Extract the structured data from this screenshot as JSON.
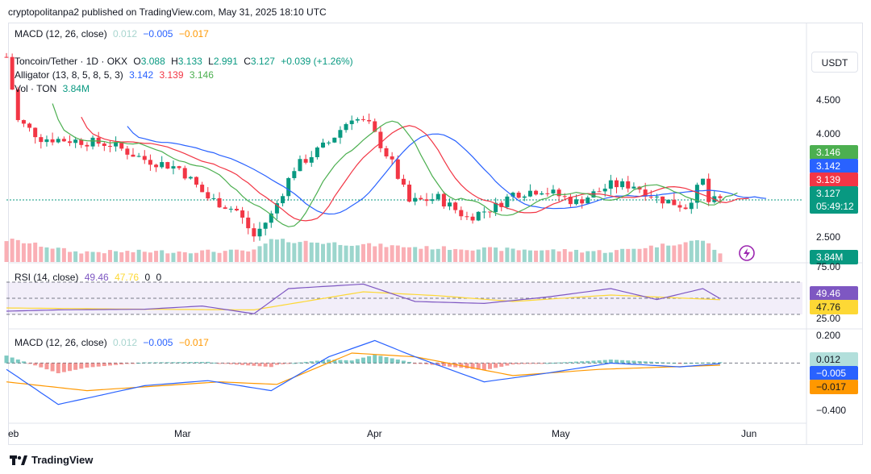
{
  "header": {
    "published": "cryptopolitanpa2 published on TradingView.com, May 31, 2025 18:10 UTC"
  },
  "top_macd_legend": {
    "label": "MACD (12, 26, close)",
    "v1": "0.012",
    "v2": "−0.005",
    "v3": "−0.017"
  },
  "price_legend": {
    "symbol": "Toncoin/Tether · 1D · OKX",
    "o_label": "O",
    "o": "3.088",
    "h_label": "H",
    "h": "3.133",
    "l_label": "L",
    "l": "2.991",
    "c_label": "C",
    "c": "3.127",
    "change": "+0.039 (+1.26%)",
    "alligator_label": "Alligator (13, 8, 5, 8, 5, 3)",
    "jaw": "3.142",
    "teeth": "3.139",
    "lips": "3.146",
    "vol_label": "Vol · TON",
    "vol": "3.84M"
  },
  "currency_button": "USDT",
  "price_axis": {
    "ticks": [
      "4.500",
      "4.000",
      "2.500"
    ],
    "min": 2.4,
    "max": 4.9
  },
  "price_badges": {
    "lips": "3.146",
    "jaw": "3.142",
    "teeth": "3.139",
    "close": "3.127",
    "countdown": "05:49:12",
    "volume": "3.84M"
  },
  "rsi": {
    "label": "RSI (14, close)",
    "value": "49.46",
    "ma": "47.76",
    "z1": "0",
    "z2": "0",
    "ticks": [
      "75.00",
      "25.00"
    ]
  },
  "macd": {
    "label": "MACD (12, 26, close)",
    "hist": "0.012",
    "macd": "−0.005",
    "signal": "−0.017",
    "ticks": [
      "0.200",
      "−0.400"
    ]
  },
  "x_axis": {
    "labels": [
      "eb",
      "Mar",
      "Apr",
      "May",
      "Jun"
    ]
  },
  "brand": {
    "name": "TradingView"
  },
  "colors": {
    "up": "#089981",
    "down": "#f23645",
    "jaw": "#2962ff",
    "teeth": "#f23645",
    "lips": "#4caf50",
    "rsi": "#7e57c2",
    "rsi_ma": "#fdd835",
    "macd_line": "#2962ff",
    "signal_line": "#ff9800"
  },
  "chart_data": {
    "type": "candlestick",
    "anchors": [
      [
        "2025-01-27",
        4.8
      ],
      [
        "2025-01-29",
        4.05
      ],
      [
        "2025-02-02",
        3.85
      ],
      [
        "2025-02-08",
        3.82
      ],
      [
        "2025-02-14",
        3.78
      ],
      [
        "2025-02-20",
        3.6
      ],
      [
        "2025-02-26",
        3.5
      ],
      [
        "2025-03-03",
        3.15
      ],
      [
        "2025-03-08",
        3.0
      ],
      [
        "2025-03-11",
        2.7
      ],
      [
        "2025-03-14",
        2.95
      ],
      [
        "2025-03-18",
        3.5
      ],
      [
        "2025-03-24",
        3.8
      ],
      [
        "2025-03-28",
        4.1
      ],
      [
        "2025-03-31",
        4.0
      ],
      [
        "2025-04-04",
        3.55
      ],
      [
        "2025-04-07",
        3.1
      ],
      [
        "2025-04-12",
        3.15
      ],
      [
        "2025-04-17",
        2.92
      ],
      [
        "2025-04-22",
        3.05
      ],
      [
        "2025-04-25",
        3.2
      ],
      [
        "2025-04-30",
        3.25
      ],
      [
        "2025-05-06",
        3.1
      ],
      [
        "2025-05-12",
        3.3
      ],
      [
        "2025-05-16",
        3.3
      ],
      [
        "2025-05-20",
        3.15
      ],
      [
        "2025-05-25",
        3.05
      ],
      [
        "2025-05-28",
        3.35
      ],
      [
        "2025-05-29",
        3.1
      ],
      [
        "2025-05-31",
        3.127
      ]
    ],
    "volume": [
      [
        "2025-01-28",
        0.95
      ],
      [
        "2025-02-08",
        0.25
      ],
      [
        "2025-03-11",
        0.3
      ],
      [
        "2025-03-14",
        0.95
      ],
      [
        "2025-04-10",
        0.5
      ],
      [
        "2025-05-12",
        0.28
      ],
      [
        "2025-05-28",
        0.95
      ],
      [
        "2025-05-31",
        0.2
      ]
    ],
    "rsi": [
      [
        "2025-01-27",
        30
      ],
      [
        "2025-02-05",
        32
      ],
      [
        "2025-02-20",
        33
      ],
      [
        "2025-03-02",
        38
      ],
      [
        "2025-03-11",
        26
      ],
      [
        "2025-03-17",
        65
      ],
      [
        "2025-03-30",
        72
      ],
      [
        "2025-04-08",
        45
      ],
      [
        "2025-04-20",
        42
      ],
      [
        "2025-05-01",
        52
      ],
      [
        "2025-05-12",
        65
      ],
      [
        "2025-05-20",
        48
      ],
      [
        "2025-05-28",
        65
      ],
      [
        "2025-05-31",
        49.46
      ]
    ],
    "rsi_ma": [
      [
        "2025-01-27",
        35
      ],
      [
        "2025-02-20",
        33
      ],
      [
        "2025-03-11",
        32
      ],
      [
        "2025-03-30",
        60
      ],
      [
        "2025-04-12",
        54
      ],
      [
        "2025-04-25",
        45
      ],
      [
        "2025-05-12",
        55
      ],
      [
        "2025-05-31",
        47.76
      ]
    ],
    "macd_line": [
      [
        "2025-01-27",
        -0.05
      ],
      [
        "2025-02-05",
        -0.33
      ],
      [
        "2025-02-20",
        -0.18
      ],
      [
        "2025-03-03",
        -0.14
      ],
      [
        "2025-03-14",
        -0.22
      ],
      [
        "2025-03-24",
        0.05
      ],
      [
        "2025-04-01",
        0.18
      ],
      [
        "2025-04-08",
        0.05
      ],
      [
        "2025-04-20",
        -0.15
      ],
      [
        "2025-05-01",
        -0.08
      ],
      [
        "2025-05-12",
        0.0
      ],
      [
        "2025-05-24",
        -0.03
      ],
      [
        "2025-05-31",
        -0.005
      ]
    ],
    "signal_line": [
      [
        "2025-01-27",
        -0.15
      ],
      [
        "2025-02-10",
        -0.22
      ],
      [
        "2025-03-05",
        -0.15
      ],
      [
        "2025-03-15",
        -0.17
      ],
      [
        "2025-03-28",
        0.08
      ],
      [
        "2025-04-08",
        0.05
      ],
      [
        "2025-04-25",
        -0.1
      ],
      [
        "2025-05-10",
        -0.05
      ],
      [
        "2025-05-31",
        -0.017
      ]
    ],
    "x_range": [
      "2025-01-27",
      "2025-06-15"
    ],
    "ylim_price": [
      2.4,
      4.9
    ],
    "ylim_rsi": [
      0,
      100
    ],
    "ylim_macd": [
      -0.48,
      0.26
    ]
  }
}
